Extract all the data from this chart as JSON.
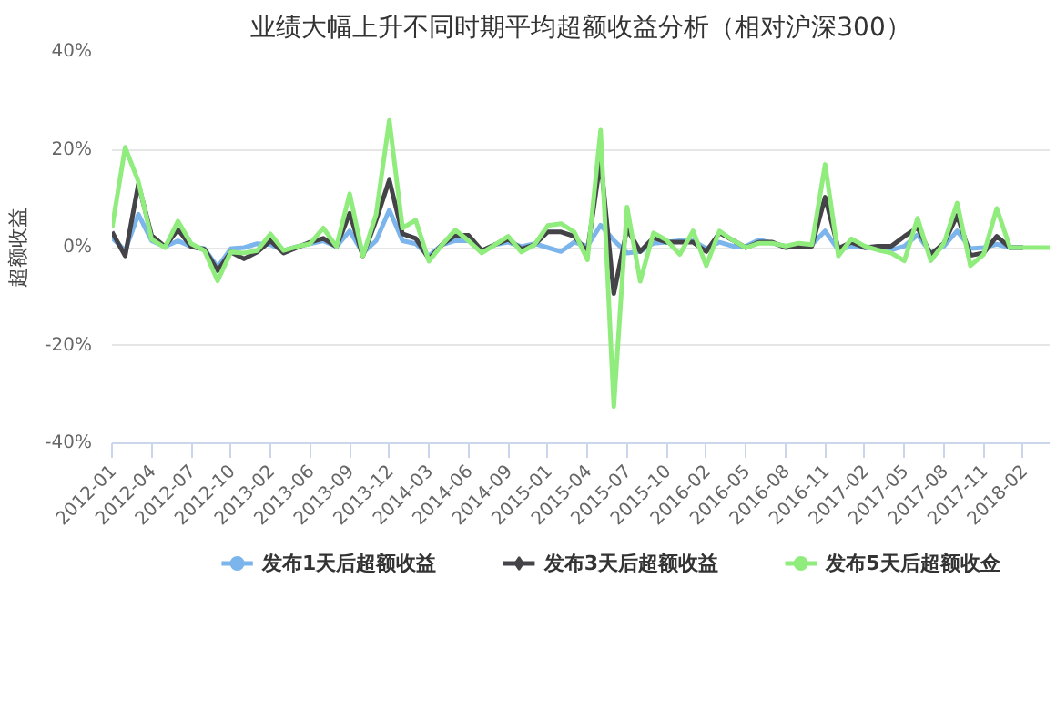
{
  "chart_data": {
    "type": "line",
    "title": "业绩大幅上升不同时期平均超额收益分析（相对沪深300）",
    "ylabel": "超额收益",
    "categories": [
      "2012-01",
      null,
      null,
      "2012-04",
      null,
      null,
      "2012-07",
      null,
      null,
      "2012-10",
      null,
      null,
      "2013-02",
      null,
      null,
      "2013-06",
      null,
      null,
      "2013-09",
      null,
      null,
      "2013-12",
      null,
      null,
      "2014-03",
      null,
      null,
      "2014-06",
      null,
      null,
      "2014-09",
      null,
      null,
      "2015-01",
      null,
      null,
      "2015-04",
      null,
      null,
      "2015-07",
      null,
      null,
      "2015-10",
      null,
      null,
      "2016-02",
      null,
      null,
      "2016-05",
      null,
      null,
      "2016-08",
      null,
      null,
      "2016-11",
      null,
      null,
      "2017-02",
      null,
      null,
      "2017-05",
      null,
      null,
      "2017-08",
      null,
      null,
      "2017-11",
      null,
      null,
      "2018-02",
      null,
      null
    ],
    "series": [
      {
        "name": "发布1天后超额收益",
        "color": "#7cb5ec",
        "values": [
          2,
          -0.6,
          6.8,
          1.4,
          0.2,
          1.4,
          0.2,
          -0.2,
          -4,
          -0.2,
          0,
          0.8,
          0.6,
          -0.6,
          0.2,
          0.8,
          1.4,
          0.2,
          3.4,
          -1.1,
          1.4,
          7.7,
          1.4,
          0.8,
          -1.7,
          0.6,
          1.4,
          1.4,
          -0.6,
          0.6,
          1.1,
          0.2,
          0.8,
          0,
          -0.8,
          1.1,
          0.3,
          4.6,
          1.5,
          -1.1,
          -0.8,
          0.9,
          1.1,
          1.4,
          1.4,
          -0.2,
          1.1,
          0.3,
          0.3,
          1.6,
          0.9,
          0.3,
          0.3,
          0.6,
          3.4,
          -0.5,
          0.3,
          0,
          0,
          -0.5,
          0.3,
          2.6,
          -1.1,
          0.3,
          3.4,
          -0.2,
          0,
          0.7,
          0,
          0,
          null,
          null
        ]
      },
      {
        "name": "发布3天后超额收益",
        "color": "#434348",
        "values": [
          3.2,
          -1.7,
          13,
          2.5,
          0.2,
          3.7,
          0.2,
          -0.3,
          -4.7,
          -0.9,
          -2.3,
          -0.9,
          1.4,
          -1.1,
          0,
          1.1,
          1.9,
          0.2,
          7,
          -1.7,
          5.6,
          13.8,
          2.8,
          1.9,
          -2.3,
          0.6,
          2.5,
          2.5,
          -0.6,
          0.6,
          1.7,
          -0.3,
          0.6,
          3.2,
          3.2,
          2.3,
          -0.8,
          18,
          -9.4,
          3.8,
          -0.8,
          2,
          1.1,
          1.1,
          1.1,
          -0.8,
          3,
          1.5,
          0,
          1.1,
          1.1,
          0,
          0.3,
          0.3,
          10.3,
          -0.2,
          1.1,
          0,
          0.3,
          0.3,
          2.3,
          4.1,
          -1.4,
          0.9,
          6.6,
          -1.6,
          -1.1,
          2.3,
          0,
          0,
          null,
          null
        ]
      },
      {
        "name": "发布5天后超额收佥",
        "color": "#90ed7d",
        "values": [
          4,
          20.5,
          13.5,
          1.7,
          0,
          5.4,
          0.8,
          -0.6,
          -6.8,
          -0.9,
          -1.1,
          -0.6,
          2.8,
          -0.6,
          0.2,
          0.8,
          4,
          0.2,
          11,
          -1.7,
          6.8,
          26,
          4,
          5.6,
          -2.8,
          0.6,
          3.6,
          1.4,
          -1.1,
          0.6,
          2.3,
          -0.9,
          0.6,
          4.5,
          4.9,
          3.2,
          -2.5,
          24,
          -32.5,
          8.3,
          -6.9,
          3,
          1.5,
          -1.4,
          3.4,
          -3.7,
          3.4,
          1.5,
          0,
          0.9,
          0.9,
          0.3,
          0.9,
          0.6,
          17,
          -1.7,
          1.8,
          0.3,
          -0.5,
          -1.1,
          -2.7,
          6,
          -2.7,
          0.9,
          9.1,
          -3.7,
          -1.4,
          8,
          0,
          0,
          0,
          0
        ]
      }
    ],
    "ylim": [
      -40,
      40
    ],
    "yticks": [
      {
        "value": -40,
        "label": "-40%"
      },
      {
        "value": -20,
        "label": "-20%"
      },
      {
        "value": 0,
        "label": "0%"
      },
      {
        "value": 20,
        "label": "20%"
      },
      {
        "value": 40,
        "label": "40%"
      }
    ],
    "grid": "y",
    "legend": "bottom",
    "marker": "none",
    "line_style": "solid"
  }
}
